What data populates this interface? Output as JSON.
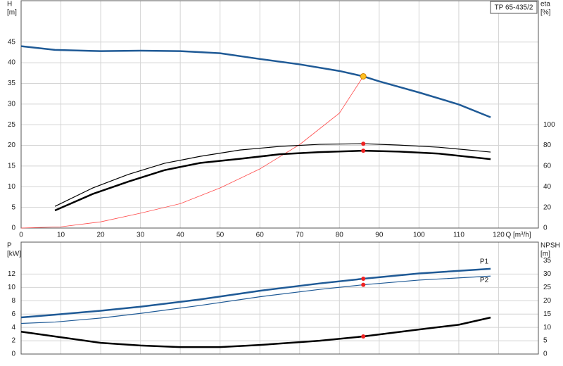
{
  "chart_data": [
    {
      "type": "line",
      "legend_title": "TP 65-435/2",
      "ylabel": [
        "H",
        "[m]"
      ],
      "y2label": [
        "eta",
        "[%]"
      ],
      "xlabel": "Q [m³/h]",
      "xlim": [
        0,
        130
      ],
      "xticks": [
        0,
        10,
        20,
        30,
        40,
        50,
        60,
        70,
        80,
        90,
        100,
        110,
        120
      ],
      "xtick_labels": true,
      "ylim": [
        0,
        55
      ],
      "yticks": [
        0,
        5,
        10,
        15,
        20,
        25,
        30,
        35,
        40,
        45
      ],
      "y2lim": [
        0,
        220
      ],
      "y2ticks": [
        0,
        20,
        40,
        60,
        80,
        100
      ],
      "grid": true,
      "series": [
        {
          "color": "#1f5a96",
          "width": 2.5,
          "x": [
            0,
            8.5,
            20,
            30,
            40,
            50,
            60,
            70,
            80,
            86,
            90,
            100,
            110,
            118
          ],
          "values": [
            44,
            43.1,
            42.8,
            42.9,
            42.8,
            42.3,
            40.9,
            39.6,
            38,
            36.7,
            35.5,
            32.8,
            29.9,
            26.8
          ]
        },
        {
          "color": "#ff4a4a",
          "width": 0.8,
          "x": [
            0,
            10,
            20,
            30,
            40,
            50,
            60,
            70,
            80,
            86
          ],
          "values": [
            0,
            0.3,
            1.5,
            3.6,
            5.9,
            9.7,
            14.3,
            20.2,
            27.8,
            36.7
          ]
        },
        {
          "color": "#000000",
          "width": 1.2,
          "axis": "y2",
          "x": [
            8.5,
            18,
            27,
            36,
            45,
            55,
            65,
            75,
            86,
            95,
            105,
            118
          ],
          "values": [
            21,
            38.8,
            52,
            62.6,
            69.4,
            75.5,
            79,
            81,
            81.6,
            80.3,
            78.2,
            73.5
          ]
        },
        {
          "color": "#000000",
          "width": 2.5,
          "axis": "y2",
          "x": [
            8.5,
            18,
            27,
            36,
            45,
            55,
            65,
            75,
            86,
            95,
            105,
            118
          ],
          "values": [
            17,
            33,
            45,
            56,
            63,
            67,
            71.4,
            73.5,
            74.8,
            74,
            72,
            66.7
          ]
        }
      ],
      "points": [
        {
          "x": 86,
          "y": 36.7,
          "color": "#ffc020"
        },
        {
          "x": 86,
          "y": 81.6,
          "axis": "y2",
          "color": "#ee2222"
        },
        {
          "x": 86,
          "y": 74.8,
          "axis": "y2",
          "color": "#ee2222"
        }
      ]
    },
    {
      "type": "line",
      "ylabel": [
        "P",
        "[kW]"
      ],
      "y2label": [
        "NPSH",
        "[m]"
      ],
      "xlim": [
        0,
        130
      ],
      "xticks": [
        0,
        10,
        20,
        30,
        40,
        50,
        60,
        70,
        80,
        90,
        100,
        110,
        120
      ],
      "xtick_labels": false,
      "ylim": [
        0,
        16.8
      ],
      "yticks": [
        0,
        2,
        4,
        6,
        8,
        10,
        12
      ],
      "y2lim": [
        0,
        42
      ],
      "y2ticks": [
        0,
        5,
        10,
        15,
        20,
        25,
        30,
        35
      ],
      "grid": true,
      "series": [
        {
          "name": "P1",
          "color": "#1f5a96",
          "width": 2.5,
          "x": [
            0,
            8.5,
            20,
            30,
            45,
            60,
            75,
            86,
            100,
            118
          ],
          "values": [
            5.5,
            5.9,
            6.5,
            7.1,
            8.2,
            9.5,
            10.6,
            11.3,
            12.1,
            12.8
          ]
        },
        {
          "name": "P2",
          "color": "#1f5a96",
          "width": 1.2,
          "x": [
            0,
            8.5,
            20,
            30,
            45,
            60,
            75,
            86,
            100,
            118
          ],
          "values": [
            4.6,
            4.8,
            5.4,
            6.1,
            7.3,
            8.6,
            9.7,
            10.4,
            11.1,
            11.7
          ]
        },
        {
          "color": "#000000",
          "width": 2.5,
          "axis": "y2",
          "x": [
            0,
            8.5,
            20,
            30,
            40,
            50,
            60,
            75,
            86,
            100,
            110,
            118
          ],
          "values": [
            8.4,
            6.6,
            4.2,
            3.2,
            2.6,
            2.6,
            3.4,
            5,
            6.6,
            9.2,
            11,
            13.7
          ]
        }
      ],
      "points": [
        {
          "x": 86,
          "y": 11.3,
          "color": "#ee2222"
        },
        {
          "x": 86,
          "y": 10.4,
          "color": "#ee2222"
        },
        {
          "x": 86,
          "y": 6.6,
          "axis": "y2",
          "color": "#ee2222"
        }
      ]
    }
  ]
}
